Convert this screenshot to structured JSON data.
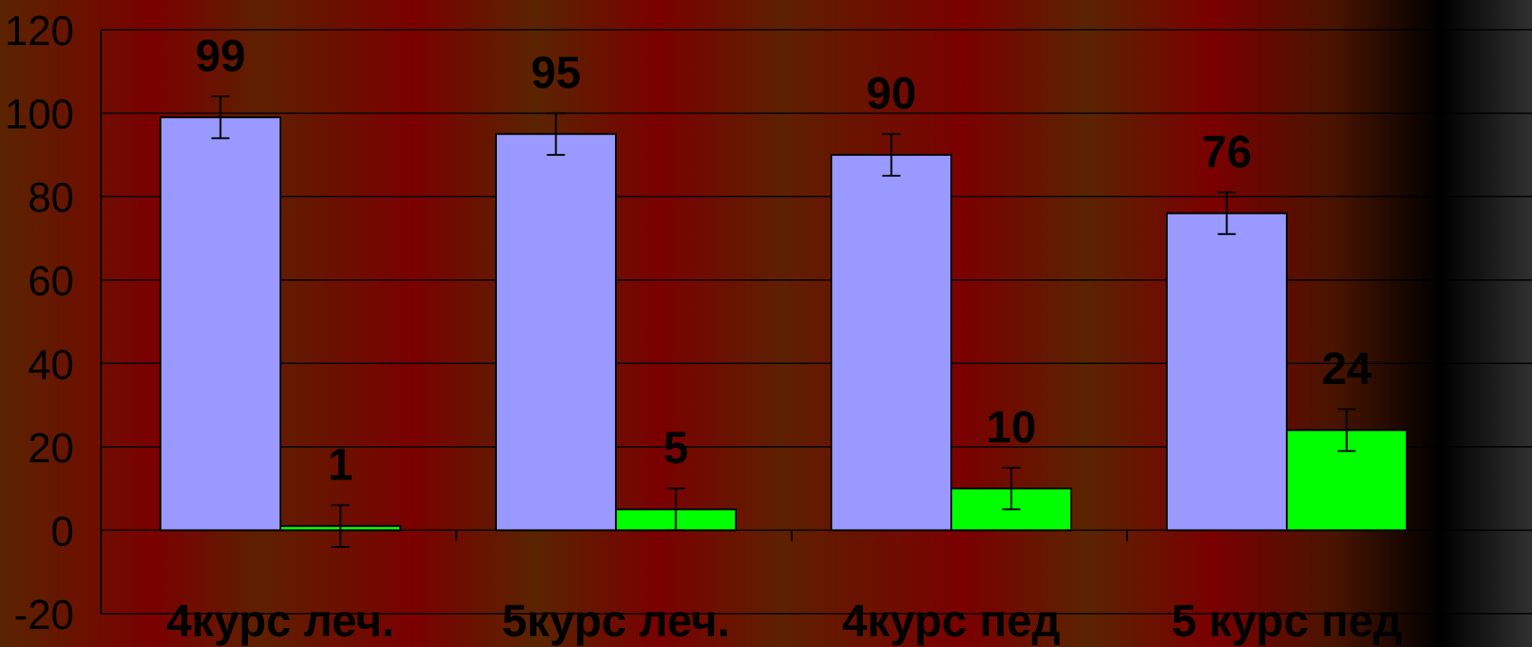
{
  "chart_data": {
    "type": "bar",
    "categories": [
      "4курс леч.",
      "5курс леч.",
      "4курс пед",
      "5 курс пед"
    ],
    "series": [
      {
        "values": [
          99,
          95,
          90,
          76
        ],
        "error": [
          5,
          5,
          5,
          5
        ],
        "color": "#9999ff"
      },
      {
        "values": [
          1,
          5,
          10,
          24
        ],
        "error": [
          5,
          5,
          5,
          5
        ],
        "color": "#00ff00"
      }
    ],
    "data_labels": [
      [
        "99",
        "95",
        "90",
        "76"
      ],
      [
        "1",
        "5",
        "10",
        "24"
      ]
    ],
    "yticks": [
      120,
      100,
      80,
      60,
      40,
      20,
      0,
      -20
    ],
    "ylim": [
      -20,
      120
    ],
    "grid": true,
    "title": "",
    "xlabel": "",
    "ylabel": ""
  }
}
